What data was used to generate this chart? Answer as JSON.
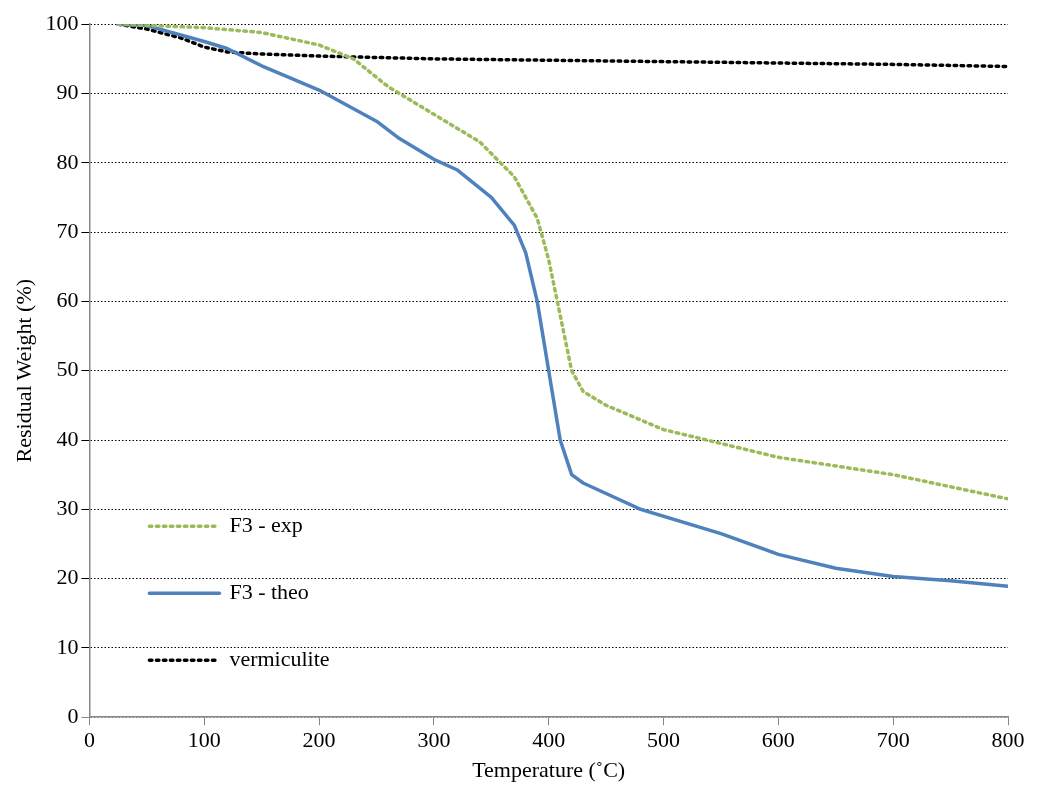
{
  "chart_data": {
    "type": "line",
    "xlabel": "Temperature (˚C)",
    "ylabel": "Residual Weight (%)",
    "xlim": [
      0,
      800
    ],
    "xticks": [
      0,
      100,
      200,
      300,
      400,
      500,
      600,
      700,
      800
    ],
    "ylim": [
      0,
      100
    ],
    "yticks": [
      0,
      10,
      20,
      30,
      40,
      50,
      60,
      70,
      80,
      90,
      100
    ],
    "grid": "y",
    "legend": "bottom left",
    "marker": "none",
    "series": [
      {
        "name": "F3 - exp",
        "color": "#9bbb59",
        "line_style": "dotted",
        "x": [
          25,
          100,
          150,
          200,
          230,
          260,
          300,
          340,
          370,
          390,
          400,
          410,
          420,
          430,
          450,
          500,
          550,
          600,
          700,
          800
        ],
        "values": [
          100,
          99.5,
          98.8,
          97,
          95,
          91,
          87,
          83,
          78,
          72,
          66,
          58,
          50,
          47,
          45,
          41.5,
          39.5,
          37.5,
          35,
          31.5
        ]
      },
      {
        "name": "F3 - theo",
        "color": "#4f81bd",
        "line_style": "solid",
        "x": [
          25,
          50,
          100,
          120,
          150,
          200,
          250,
          270,
          300,
          320,
          350,
          370,
          380,
          390,
          400,
          410,
          420,
          430,
          480,
          550,
          600,
          650,
          700,
          750,
          800
        ],
        "values": [
          100,
          99.8,
          97.5,
          96.5,
          94,
          90.5,
          86,
          83.5,
          80.5,
          79,
          75,
          71,
          67,
          60,
          50,
          40,
          35,
          33.8,
          30,
          26.5,
          23.5,
          21.5,
          20.3,
          19.7,
          18.9
        ]
      },
      {
        "name": "vermiculite",
        "color": "#000000",
        "line_style": "dotted",
        "x": [
          25,
          50,
          80,
          100,
          120,
          150,
          200,
          300,
          400,
          500,
          600,
          700,
          800
        ],
        "values": [
          100,
          99.3,
          98,
          96.7,
          96,
          95.7,
          95.4,
          95,
          94.8,
          94.6,
          94.4,
          94.2,
          93.9
        ]
      }
    ]
  }
}
